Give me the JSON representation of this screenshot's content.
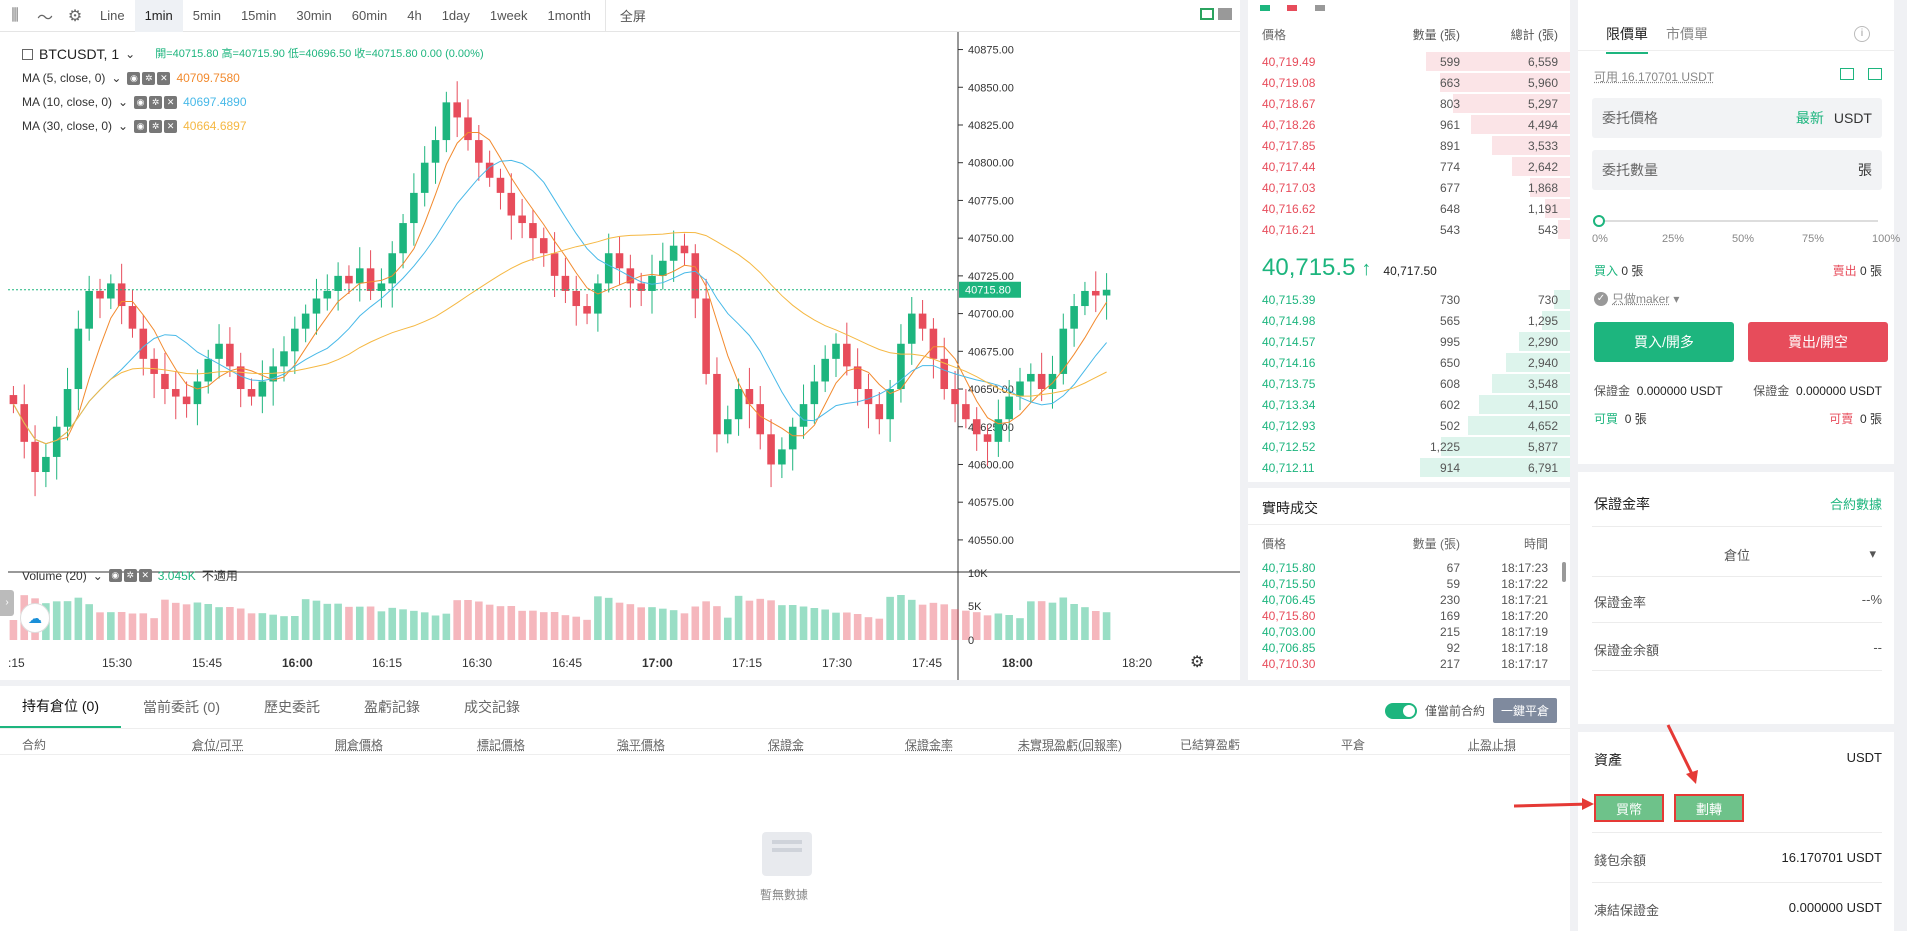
{
  "toolbar": {
    "line_label": "Line",
    "intervals": [
      "1min",
      "5min",
      "15min",
      "30min",
      "60min",
      "4h",
      "1day",
      "1week",
      "1month"
    ],
    "active_interval": "1min",
    "fullscreen_label": "全屏"
  },
  "legend": {
    "symbol": "BTCUSDT, 1",
    "ohlc_text": "開=40715.80  高=40715.90  低=40696.50  收=40715.80  0.00 (0.00%)",
    "ma5_label": "MA (5, close, 0)",
    "ma5_value": "40709.7580",
    "ma10_label": "MA (10, close, 0)",
    "ma10_value": "40697.4890",
    "ma30_label": "MA (30, close, 0)",
    "ma30_value": "40664.6897",
    "volume_label": "Volume (20)",
    "volume_value": "3.045K",
    "volume_extra": "不適用"
  },
  "colors": {
    "up": "#1db57e",
    "down": "#e74c5b",
    "ma5": "#f28a2e",
    "ma10": "#48b9e8",
    "ma30": "#f5b843"
  },
  "chart_data": {
    "type": "candlestick",
    "price_ticks": [
      "40875.00",
      "40850.00",
      "40825.00",
      "40800.00",
      "40775.00",
      "40750.00",
      "40725.00",
      "40700.00",
      "40675.00",
      "40650.00",
      "40625.00",
      "40600.00",
      "40575.00",
      "40550.00"
    ],
    "ylim": [
      40540,
      40880
    ],
    "last_price_label": "40715.80",
    "last_price": 40715.8,
    "volume_ticks": [
      "10K",
      "5K",
      "0"
    ],
    "time_ticks": [
      ":15",
      "15:30",
      "15:45",
      "16:00",
      "16:15",
      "16:30",
      "16:45",
      "17:00",
      "17:15",
      "17:30",
      "17:45",
      "18:00",
      "18:20"
    ],
    "closes": [
      40640,
      40615,
      40595,
      40605,
      40625,
      40650,
      40690,
      40715,
      40710,
      40720,
      40705,
      40690,
      40670,
      40660,
      40650,
      40645,
      40640,
      40655,
      40670,
      40680,
      40665,
      40650,
      40645,
      40655,
      40665,
      40675,
      40690,
      40700,
      40710,
      40715,
      40725,
      40720,
      40730,
      40715,
      40720,
      40740,
      40760,
      40780,
      40800,
      40815,
      40840,
      40830,
      40815,
      40800,
      40790,
      40780,
      40765,
      40760,
      40750,
      40740,
      40725,
      40715,
      40705,
      40700,
      40720,
      40740,
      40730,
      40720,
      40715,
      40725,
      40735,
      40745,
      40740,
      40710,
      40660,
      40620,
      40630,
      40650,
      40640,
      40620,
      40600,
      40610,
      40625,
      40640,
      40655,
      40670,
      40680,
      40665,
      40650,
      40640,
      40630,
      40650,
      40680,
      40700,
      40690,
      40670,
      40650,
      40640,
      40630,
      40620,
      40615,
      40630,
      40645,
      40655,
      40660,
      40650,
      40660,
      40690,
      40705,
      40715,
      40712,
      40715.8
    ]
  },
  "orderbook": {
    "header_price": "價格",
    "header_qty": "數量 (張)",
    "header_total": "總計 (張)",
    "asks": [
      {
        "price": "40,719.49",
        "qty": "599",
        "total": "6,559",
        "depth": 0.96
      },
      {
        "price": "40,719.08",
        "qty": "663",
        "total": "5,960",
        "depth": 0.87
      },
      {
        "price": "40,718.67",
        "qty": "803",
        "total": "5,297",
        "depth": 0.78
      },
      {
        "price": "40,718.26",
        "qty": "961",
        "total": "4,494",
        "depth": 0.66
      },
      {
        "price": "40,717.85",
        "qty": "891",
        "total": "3,533",
        "depth": 0.52
      },
      {
        "price": "40,717.44",
        "qty": "774",
        "total": "2,642",
        "depth": 0.39
      },
      {
        "price": "40,717.03",
        "qty": "677",
        "total": "1,868",
        "depth": 0.27
      },
      {
        "price": "40,716.62",
        "qty": "648",
        "total": "1,191",
        "depth": 0.17
      },
      {
        "price": "40,716.21",
        "qty": "543",
        "total": "543",
        "depth": 0.08
      }
    ],
    "mid_price": "40,715.5",
    "mid_arrow": "↑",
    "mark_price": "40,717.50",
    "bids": [
      {
        "price": "40,715.39",
        "qty": "730",
        "total": "730",
        "depth": 0.11
      },
      {
        "price": "40,714.98",
        "qty": "565",
        "total": "1,295",
        "depth": 0.19
      },
      {
        "price": "40,714.57",
        "qty": "995",
        "total": "2,290",
        "depth": 0.34
      },
      {
        "price": "40,714.16",
        "qty": "650",
        "total": "2,940",
        "depth": 0.43
      },
      {
        "price": "40,713.75",
        "qty": "608",
        "total": "3,548",
        "depth": 0.52
      },
      {
        "price": "40,713.34",
        "qty": "602",
        "total": "4,150",
        "depth": 0.61
      },
      {
        "price": "40,712.93",
        "qty": "502",
        "total": "4,652",
        "depth": 0.68
      },
      {
        "price": "40,712.52",
        "qty": "1,225",
        "total": "5,877",
        "depth": 0.86
      },
      {
        "price": "40,712.11",
        "qty": "914",
        "total": "6,791",
        "depth": 1.0
      }
    ]
  },
  "trades": {
    "title": "實時成交",
    "header_price": "價格",
    "header_qty": "數量 (張)",
    "header_time": "時間",
    "rows": [
      {
        "price": "40,715.80",
        "qty": "67",
        "time": "18:17:23",
        "side": "buy"
      },
      {
        "price": "40,715.50",
        "qty": "59",
        "time": "18:17:22",
        "side": "buy"
      },
      {
        "price": "40,706.45",
        "qty": "230",
        "time": "18:17:21",
        "side": "buy"
      },
      {
        "price": "40,715.80",
        "qty": "169",
        "time": "18:17:20",
        "side": "sell"
      },
      {
        "price": "40,703.00",
        "qty": "215",
        "time": "18:17:19",
        "side": "buy"
      },
      {
        "price": "40,706.85",
        "qty": "92",
        "time": "18:17:18",
        "side": "buy"
      },
      {
        "price": "40,710.30",
        "qty": "217",
        "time": "18:17:17",
        "side": "sell"
      }
    ]
  },
  "positions": {
    "tabs": [
      "持有倉位 (0)",
      "當前委託 (0)",
      "歷史委託",
      "盈虧記錄",
      "成交記錄"
    ],
    "only_current_label": "僅當前合約",
    "close_all_label": "一鍵平倉",
    "columns": [
      "合約",
      "倉位/可平",
      "開倉價格",
      "標記價格",
      "強平價格",
      "保證金",
      "保證金率",
      "未實現盈虧(回報率)",
      "已結算盈虧",
      "平倉",
      "止盈止損"
    ],
    "empty_text": "暫無數據"
  },
  "order": {
    "tab_limit": "限價單",
    "tab_market": "市價單",
    "available": "可用 16.170701 USDT",
    "price_placeholder": "委托價格",
    "price_latest": "最新",
    "price_unit": "USDT",
    "qty_placeholder": "委托數量",
    "qty_unit": "張",
    "slider_marks": [
      "0%",
      "25%",
      "50%",
      "75%",
      "100%"
    ],
    "buy_qty_label": "買入",
    "buy_qty_value": "0 張",
    "sell_qty_label": "賣出",
    "sell_qty_value": "0 張",
    "maker_only": "只做maker",
    "buy_button": "買入/開多",
    "sell_button": "賣出/開空",
    "margin_left_label": "保證金",
    "margin_left_value": "0.000000 USDT",
    "margin_right_label": "保證金",
    "margin_right_value": "0.000000 USDT",
    "can_buy_label": "可買",
    "can_buy_value": "0 張",
    "can_sell_label": "可賣",
    "can_sell_value": "0 張"
  },
  "margin": {
    "title": "保證金率",
    "link": "合約數據",
    "position_select": "倉位",
    "rate_label": "保證金率",
    "rate_value": "--%",
    "balance_label": "保證金余額",
    "balance_value": "--"
  },
  "assets": {
    "title": "資產",
    "currency": "USDT",
    "buy_coin": "買幣",
    "transfer": "劃轉",
    "wallet_label": "錢包余額",
    "wallet_value": "16.170701 USDT",
    "frozen_label": "凍結保證金",
    "frozen_value": "0.000000 USDT"
  }
}
